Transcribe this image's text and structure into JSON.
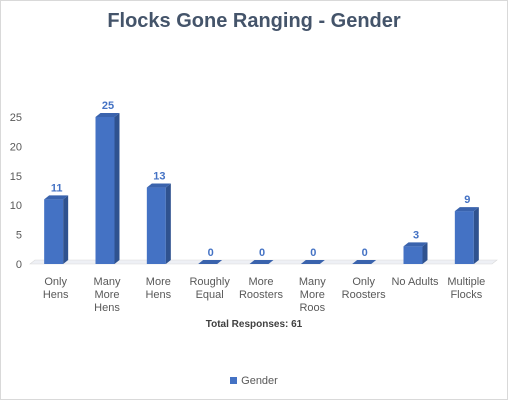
{
  "chart_data": {
    "type": "bar",
    "title": "Flocks Gone Ranging - Gender",
    "categories": [
      [
        "Only",
        "Hens"
      ],
      [
        "Many",
        "More",
        "Hens"
      ],
      [
        "More",
        "Hens"
      ],
      [
        "Roughly",
        "Equal"
      ],
      [
        "More",
        "Roosters"
      ],
      [
        "Many",
        "More",
        "Roos"
      ],
      [
        "Only",
        "Roosters"
      ],
      [
        "No Adults"
      ],
      [
        "Multiple",
        "Flocks"
      ]
    ],
    "series": [
      {
        "name": "Gender",
        "values": [
          11,
          25,
          13,
          0,
          0,
          0,
          0,
          3,
          9
        ],
        "color": "#4472c4"
      }
    ],
    "ylim": [
      0,
      25
    ],
    "yticks": [
      0,
      5,
      10,
      15,
      20,
      25
    ],
    "grid": false,
    "legend": "bottom",
    "annotation": "Total Responses:  61",
    "xlabel": "",
    "ylabel": ""
  }
}
